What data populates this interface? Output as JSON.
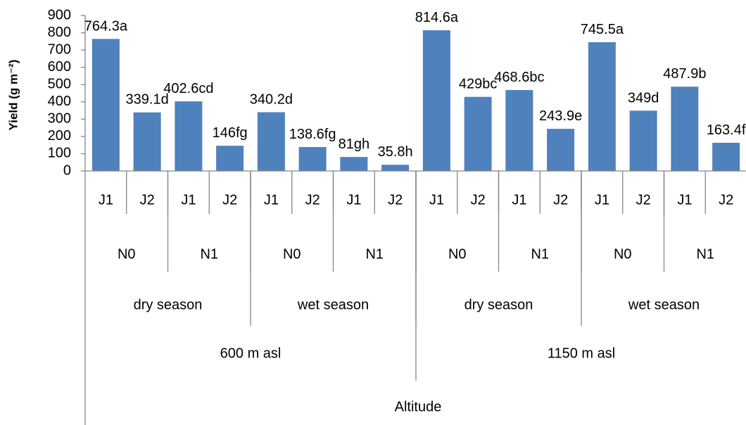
{
  "chart_data": {
    "type": "bar",
    "ylabel": "Yield (g m⁻²)",
    "xlabel": "Altitude",
    "ylim": [
      0,
      900
    ],
    "yticks": [
      0,
      100,
      200,
      300,
      400,
      500,
      600,
      700,
      800,
      900
    ],
    "bar_color": "#4f81bd",
    "categories": [
      {
        "altitude": "600 m asl",
        "season": "dry season",
        "n": "N0",
        "j": "J1",
        "value": 764.3,
        "label": "764.3a"
      },
      {
        "altitude": "600 m asl",
        "season": "dry season",
        "n": "N0",
        "j": "J2",
        "value": 339.1,
        "label": "339.1d"
      },
      {
        "altitude": "600 m asl",
        "season": "dry season",
        "n": "N1",
        "j": "J1",
        "value": 402.6,
        "label": "402.6cd"
      },
      {
        "altitude": "600 m asl",
        "season": "dry season",
        "n": "N1",
        "j": "J2",
        "value": 146,
        "label": "146fg"
      },
      {
        "altitude": "600 m asl",
        "season": "wet season",
        "n": "N0",
        "j": "J1",
        "value": 340.2,
        "label": "340.2d"
      },
      {
        "altitude": "600 m asl",
        "season": "wet season",
        "n": "N0",
        "j": "J2",
        "value": 138.6,
        "label": "138.6fg"
      },
      {
        "altitude": "600 m asl",
        "season": "wet season",
        "n": "N1",
        "j": "J1",
        "value": 81,
        "label": "81gh"
      },
      {
        "altitude": "600 m asl",
        "season": "wet season",
        "n": "N1",
        "j": "J2",
        "value": 35.8,
        "label": "35.8h"
      },
      {
        "altitude": "1150 m asl",
        "season": "dry season",
        "n": "N0",
        "j": "J1",
        "value": 814.6,
        "label": "814.6a"
      },
      {
        "altitude": "1150 m asl",
        "season": "dry season",
        "n": "N0",
        "j": "J2",
        "value": 429,
        "label": "429bc"
      },
      {
        "altitude": "1150 m asl",
        "season": "dry season",
        "n": "N1",
        "j": "J1",
        "value": 468.6,
        "label": "468.6bc"
      },
      {
        "altitude": "1150 m asl",
        "season": "dry season",
        "n": "N1",
        "j": "J2",
        "value": 243.9,
        "label": "243.9e"
      },
      {
        "altitude": "1150 m asl",
        "season": "wet season",
        "n": "N0",
        "j": "J1",
        "value": 745.5,
        "label": "745.5a"
      },
      {
        "altitude": "1150 m asl",
        "season": "wet season",
        "n": "N0",
        "j": "J2",
        "value": 349,
        "label": "349d"
      },
      {
        "altitude": "1150 m asl",
        "season": "wet season",
        "n": "N1",
        "j": "J1",
        "value": 487.9,
        "label": "487.9b"
      },
      {
        "altitude": "1150 m asl",
        "season": "wet season",
        "n": "N1",
        "j": "J2",
        "value": 163.4,
        "label": "163.4f"
      }
    ]
  }
}
